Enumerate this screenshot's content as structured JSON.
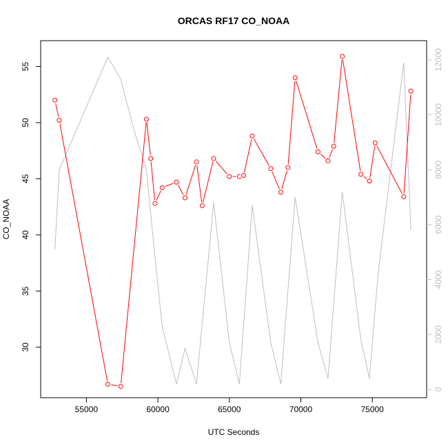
{
  "chart_data": {
    "type": "line",
    "title": "ORCAS RF17 CO_NOAA",
    "xlabel": "UTC Seconds",
    "ylabel": "CO_NOAA",
    "xlim": [
      51800,
      78800
    ],
    "ylim": [
      25.5,
      57.3
    ],
    "y2lim": [
      -300,
      12700
    ],
    "x_ticks": [
      55000,
      60000,
      65000,
      70000,
      75000
    ],
    "y_ticks": [
      30,
      35,
      40,
      45,
      50,
      55
    ],
    "y2_ticks": [
      0,
      2000,
      4000,
      6000,
      8000,
      10000,
      12000
    ],
    "series": [
      {
        "axis": "left",
        "color": "#ff0000",
        "markers": "open-circle",
        "x": [
          52800,
          53100,
          56500,
          57400,
          59200,
          59500,
          59800,
          60300,
          61300,
          61900,
          62700,
          63100,
          63900,
          65000,
          65700,
          66000,
          66600,
          67900,
          68600,
          69100,
          69600,
          71200,
          71900,
          72300,
          72900,
          74200,
          74800,
          75200,
          77200,
          77700
        ],
        "values": [
          52.0,
          50.2,
          26.7,
          26.5,
          50.3,
          46.8,
          42.8,
          44.2,
          44.7,
          43.3,
          46.5,
          42.6,
          46.8,
          45.2,
          45.2,
          45.3,
          48.8,
          45.9,
          43.8,
          46.0,
          54.0,
          47.4,
          46.6,
          47.9,
          55.9,
          45.4,
          44.8,
          48.2,
          43.4,
          52.8
        ]
      },
      {
        "axis": "right",
        "color": "#bebebe",
        "markers": "none",
        "x": [
          52800,
          53100,
          56500,
          57400,
          58300,
          59200,
          59800,
          60300,
          61300,
          61900,
          62700,
          63900,
          65000,
          65700,
          66600,
          67900,
          68600,
          69600,
          71200,
          71900,
          72900,
          74200,
          74800,
          75400,
          77200,
          77700
        ],
        "values": [
          5100,
          8000,
          12100,
          11300,
          9500,
          8000,
          4800,
          2300,
          200,
          1500,
          200,
          6800,
          1700,
          200,
          6700,
          1700,
          200,
          7000,
          1700,
          400,
          7200,
          1800,
          400,
          4200,
          11900,
          5800
        ]
      }
    ]
  }
}
